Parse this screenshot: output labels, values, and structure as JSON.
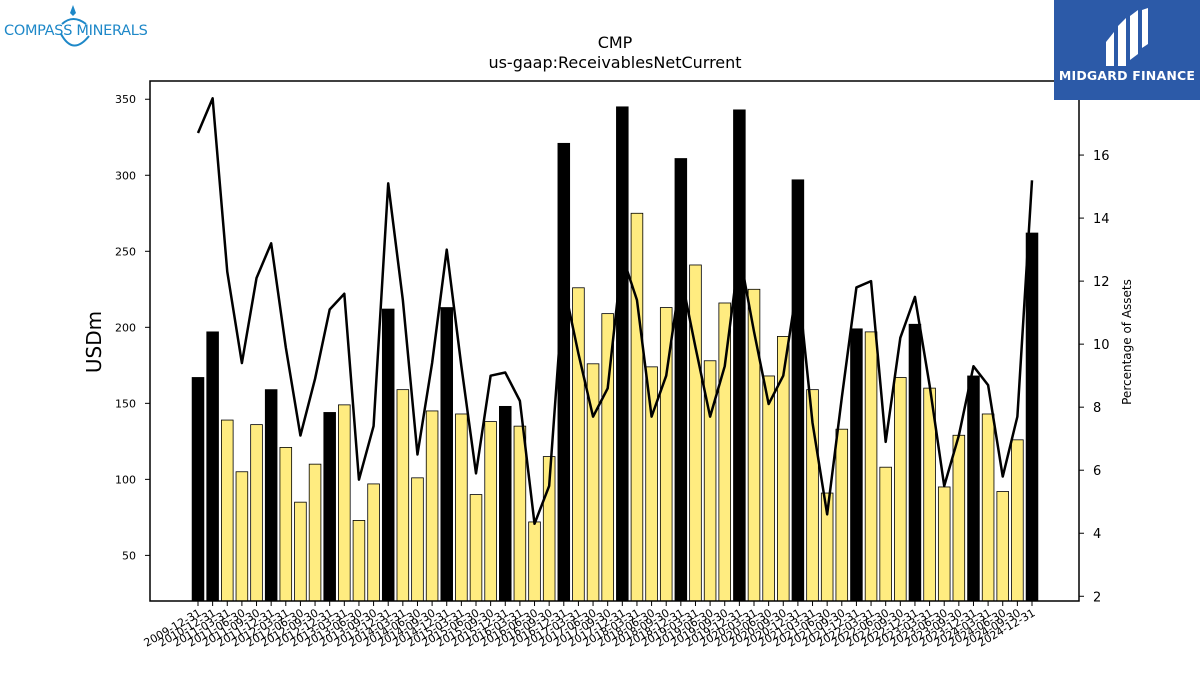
{
  "logos": {
    "left_text": "COMPASS MINERALS",
    "right_text": "MIDGARD FINANCE"
  },
  "chart_data": {
    "type": "bar",
    "title": "CMP",
    "subtitle": "us-gaap:ReceivablesNetCurrent",
    "ylabel": "USDm",
    "y2label": "Percentage of Assets",
    "ylim": [
      20,
      362
    ],
    "y2lim": [
      1.85,
      18.35
    ],
    "yticks": [
      50,
      100,
      150,
      200,
      250,
      300,
      350
    ],
    "y2ticks": [
      2,
      4,
      6,
      8,
      10,
      12,
      14,
      16
    ],
    "colors": {
      "annual_bar": "#000000",
      "quarter_bar": "#ffec80",
      "line": "#000000"
    },
    "categories": [
      "2009-12-31",
      "2010-12-31",
      "2011-03-31",
      "2011-06-30",
      "2011-09-30",
      "2011-12-31",
      "2012-03-31",
      "2012-06-30",
      "2012-09-30",
      "2012-12-31",
      "2013-03-31",
      "2013-06-30",
      "2013-09-30",
      "2013-12-31",
      "2014-03-31",
      "2014-06-30",
      "2014-09-30",
      "2014-12-31",
      "2015-03-31",
      "2015-06-30",
      "2015-09-30",
      "2015-12-31",
      "2016-03-31",
      "2016-06-30",
      "2016-09-30",
      "2016-12-31",
      "2017-03-31",
      "2017-06-30",
      "2017-09-30",
      "2017-12-31",
      "2018-03-31",
      "2018-06-30",
      "2018-09-30",
      "2018-12-31",
      "2019-03-31",
      "2019-06-30",
      "2019-09-30",
      "2019-12-31",
      "2020-03-31",
      "2020-06-30",
      "2020-09-30",
      "2020-12-31",
      "2021-03-31",
      "2021-06-30",
      "2021-09-30",
      "2021-12-31",
      "2022-03-31",
      "2022-06-30",
      "2022-09-30",
      "2022-12-31",
      "2023-03-31",
      "2023-06-30",
      "2023-09-30",
      "2023-12-31",
      "2024-03-31",
      "2024-06-30",
      "2024-09-30",
      "2024-12-31"
    ],
    "xtick_labels": [
      "2009-12-31",
      "2010-12-31",
      "2011-03-31",
      "2011-06-30",
      "2011-09-30",
      "2011-12-31",
      "2012-03-31",
      "2012-06-30",
      "2012-09-30",
      "2012-12-31",
      "2013-03-31",
      "2013-06-30",
      "2013-09-30",
      "2013-12-31",
      "2014-03-31",
      "2014-06-30",
      "2014-09-30",
      "2014-12-31",
      "2015-03-31",
      "2015-06-30",
      "2015-09-30",
      "2015-12-31",
      "2016-03-31",
      "2016-06-30",
      "2016-09-30",
      "2016-12-31",
      "2017-03-31",
      "2017-06-30",
      "2017-09-30",
      "2017-12-31",
      "2018-03-31",
      "2018-06-30",
      "2018-09-30",
      "2018-12-31",
      "2019-03-31",
      "2019-06-30",
      "2019-09-30",
      "2019-12-31",
      "2020-03-31",
      "2020-06-30",
      "2020-09-30",
      "2020-12-31",
      "2021-03-31",
      "2021-06-30",
      "2021-09-30",
      "2021-12-31",
      "2022-03-31",
      "2022-06-30",
      "2022-09-30",
      "2022-12-31",
      "2023-03-31",
      "2023-06-30",
      "2023-09-30",
      "2023-12-31",
      "2024-03-31",
      "2024-06-30",
      "2024-09-30",
      "2024-12-31"
    ],
    "series": [
      {
        "kind": "bar",
        "axis": "left",
        "values": [
          167,
          197,
          139,
          105,
          136,
          159,
          121,
          85,
          110,
          144,
          149,
          73,
          97,
          212,
          159,
          101,
          145,
          213,
          143,
          90,
          138,
          148,
          135,
          72,
          115,
          321,
          226,
          176,
          209,
          345,
          275,
          174,
          213,
          311,
          241,
          178,
          216,
          343,
          225,
          168,
          194,
          297,
          159,
          91,
          133,
          199,
          197,
          108,
          167,
          202,
          160,
          95,
          129,
          168,
          143,
          92,
          126,
          262
        ],
        "annual": [
          true,
          true,
          false,
          false,
          false,
          true,
          false,
          false,
          false,
          true,
          false,
          false,
          false,
          true,
          false,
          false,
          false,
          true,
          false,
          false,
          false,
          true,
          false,
          false,
          false,
          true,
          false,
          false,
          false,
          true,
          false,
          false,
          false,
          true,
          false,
          false,
          false,
          true,
          false,
          false,
          false,
          true,
          false,
          false,
          false,
          true,
          false,
          false,
          false,
          true,
          false,
          false,
          false,
          true,
          false,
          false,
          false,
          true
        ]
      },
      {
        "kind": "line",
        "axis": "right",
        "values": [
          16.7,
          17.8,
          12.3,
          9.4,
          12.1,
          13.2,
          9.9,
          7.1,
          8.9,
          11.1,
          11.6,
          5.7,
          7.4,
          15.1,
          11.4,
          6.5,
          9.4,
          13.0,
          9.3,
          5.9,
          9.0,
          9.1,
          8.2,
          4.3,
          5.5,
          11.9,
          9.7,
          7.7,
          8.6,
          12.8,
          11.4,
          7.7,
          9.0,
          12.2,
          9.9,
          7.7,
          9.3,
          12.9,
          10.4,
          8.1,
          9.0,
          12.0,
          7.5,
          4.6,
          8.3,
          11.8,
          12.0,
          6.9,
          10.2,
          11.5,
          8.7,
          5.5,
          7.1,
          9.3,
          8.7,
          5.8,
          7.7,
          15.2
        ]
      }
    ]
  }
}
